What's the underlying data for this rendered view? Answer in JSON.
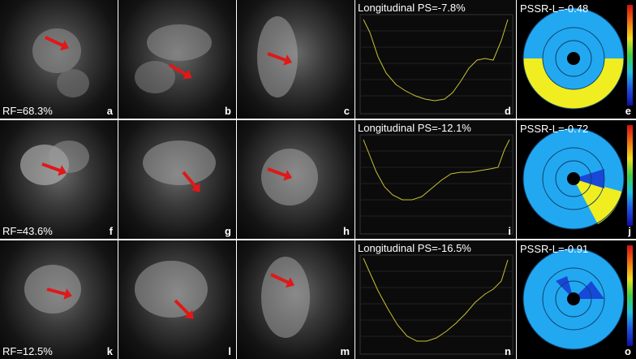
{
  "rows": [
    {
      "rf_label": "RF=68.3%",
      "letters": [
        "a",
        "b",
        "c",
        "d",
        "e"
      ],
      "graph_title": "Longitudinal PS=-7.8%",
      "pssr_title": "PSSR-L=-0.48",
      "arrow_colors": "#e01818"
    },
    {
      "rf_label": "RF=43.6%",
      "letters": [
        "f",
        "g",
        "h",
        "i",
        "j"
      ],
      "graph_title": "Longitudinal PS=-12.1%",
      "pssr_title": "PSSR-L=-0.72",
      "arrow_colors": "#e01818"
    },
    {
      "rf_label": "RF=12.5%",
      "letters": [
        "k",
        "l",
        "m",
        "n",
        "o"
      ],
      "graph_title": "Longitudinal PS=-16.5%",
      "pssr_title": "PSSR-L=-0.91",
      "arrow_colors": "#e01818"
    }
  ],
  "colors": {
    "curve": "#c8c030",
    "bullseye_base": "#22a8f0",
    "bullseye_yellow": "#f0ee20",
    "bullseye_blue": "#1848d8"
  }
}
